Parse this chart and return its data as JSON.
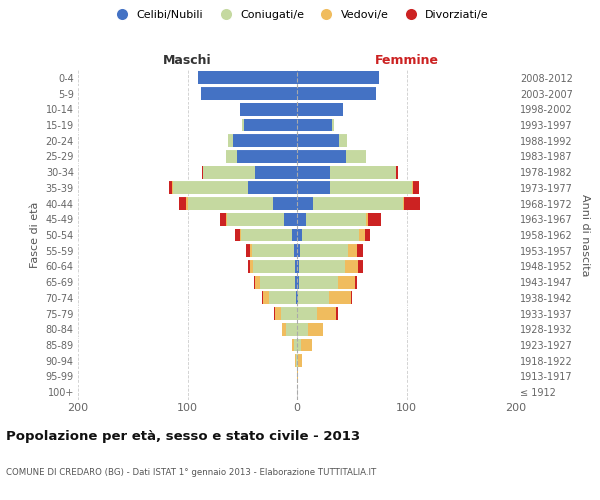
{
  "age_groups": [
    "100+",
    "95-99",
    "90-94",
    "85-89",
    "80-84",
    "75-79",
    "70-74",
    "65-69",
    "60-64",
    "55-59",
    "50-54",
    "45-49",
    "40-44",
    "35-39",
    "30-34",
    "25-29",
    "20-24",
    "15-19",
    "10-14",
    "5-9",
    "0-4"
  ],
  "birth_years": [
    "≤ 1912",
    "1913-1917",
    "1918-1922",
    "1923-1927",
    "1928-1932",
    "1933-1937",
    "1938-1942",
    "1943-1947",
    "1948-1952",
    "1953-1957",
    "1958-1962",
    "1963-1967",
    "1968-1972",
    "1973-1977",
    "1978-1982",
    "1983-1987",
    "1988-1992",
    "1993-1997",
    "1998-2002",
    "2003-2007",
    "2008-2012"
  ],
  "maschi_celibi": [
    0,
    0,
    0,
    0,
    0,
    0,
    1,
    2,
    2,
    3,
    5,
    12,
    22,
    45,
    38,
    55,
    58,
    48,
    52,
    88,
    90
  ],
  "maschi_coniugati": [
    0,
    0,
    1,
    3,
    10,
    15,
    25,
    32,
    38,
    38,
    46,
    52,
    78,
    68,
    48,
    10,
    5,
    2,
    0,
    0,
    0
  ],
  "maschi_vedovi": [
    0,
    0,
    1,
    2,
    4,
    5,
    5,
    4,
    3,
    2,
    1,
    1,
    1,
    1,
    0,
    0,
    0,
    0,
    0,
    0,
    0
  ],
  "maschi_divorziati": [
    0,
    0,
    0,
    0,
    0,
    1,
    1,
    1,
    2,
    4,
    5,
    5,
    7,
    3,
    1,
    0,
    0,
    0,
    0,
    0,
    0
  ],
  "femmine_nubili": [
    0,
    0,
    0,
    0,
    0,
    0,
    1,
    2,
    2,
    3,
    5,
    8,
    15,
    30,
    30,
    45,
    38,
    32,
    42,
    72,
    75
  ],
  "femmine_coniugate": [
    0,
    0,
    1,
    4,
    10,
    18,
    28,
    35,
    42,
    44,
    52,
    55,
    82,
    75,
    60,
    18,
    8,
    2,
    0,
    0,
    0
  ],
  "femmine_vedove": [
    0,
    1,
    4,
    10,
    14,
    18,
    20,
    16,
    12,
    8,
    5,
    2,
    1,
    1,
    0,
    0,
    0,
    0,
    0,
    0,
    0
  ],
  "femmine_divorziate": [
    0,
    0,
    0,
    0,
    0,
    1,
    1,
    2,
    4,
    5,
    5,
    12,
    14,
    5,
    2,
    0,
    0,
    0,
    0,
    0,
    0
  ],
  "color_celibi": "#4472C4",
  "color_coniugati": "#C5D9A0",
  "color_vedovi": "#F0BC5E",
  "color_divorziati": "#CC2222",
  "xlim": 200,
  "title": "Popolazione per età, sesso e stato civile - 2013",
  "subtitle": "COMUNE DI CREDARO (BG) - Dati ISTAT 1° gennaio 2013 - Elaborazione TUTTITALIA.IT",
  "label_maschi": "Maschi",
  "label_femmine": "Femmine",
  "ylabel_left": "Fasce di età",
  "ylabel_right": "Anni di nascita",
  "legend_labels": [
    "Celibi/Nubili",
    "Coniugati/e",
    "Vedovi/e",
    "Divorziati/e"
  ]
}
